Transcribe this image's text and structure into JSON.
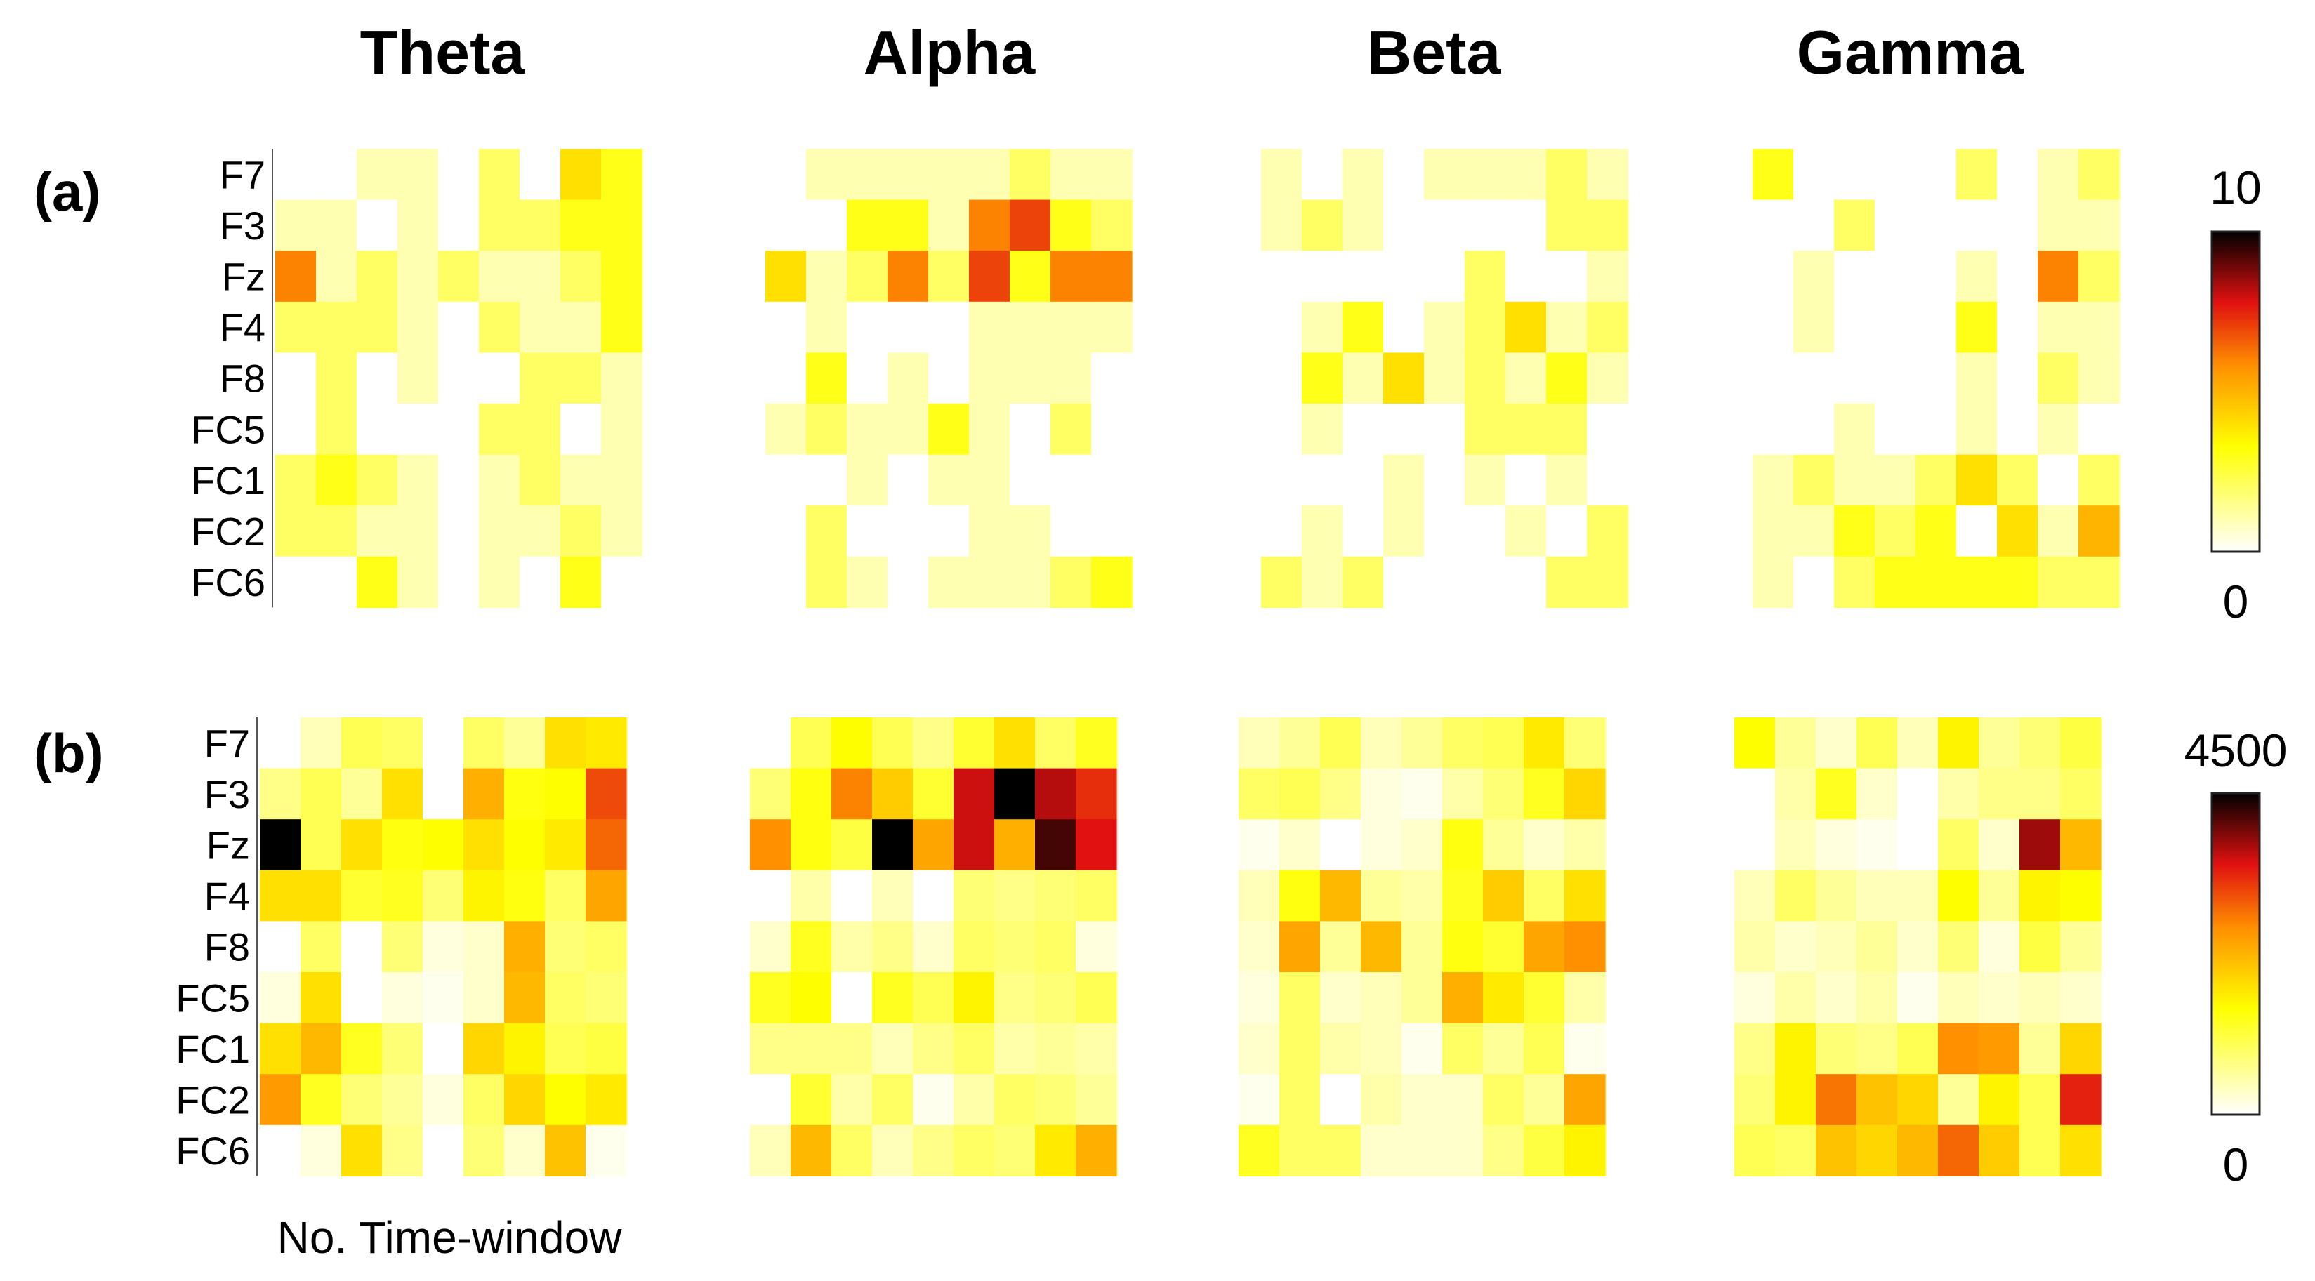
{
  "chart_data": {
    "type": "heatmap",
    "colormap": "hot (reversed: white = 0, yellow, orange, red, black = max)",
    "bands": [
      "Theta",
      "Alpha",
      "Beta",
      "Gamma"
    ],
    "channels": [
      "F7",
      "F3",
      "Fz",
      "F4",
      "F8",
      "FC5",
      "FC1",
      "FC2",
      "FC6"
    ],
    "time_windows": 9,
    "xlabel": "No. Time-window",
    "panels": [
      {
        "label": "(a)",
        "colorbar": {
          "min": 0,
          "max": 10,
          "min_label": "0",
          "max_label": "10"
        },
        "matrices": [
          [
            [
              0,
              0,
              1,
              1,
              0,
              2,
              0,
              4,
              3
            ],
            [
              1,
              1,
              0,
              1,
              0,
              2,
              2,
              3,
              3
            ],
            [
              6,
              1,
              2,
              1,
              2,
              1,
              1,
              2,
              3
            ],
            [
              2,
              2,
              2,
              1,
              0,
              2,
              1,
              1,
              3
            ],
            [
              0,
              2,
              0,
              1,
              0,
              0,
              2,
              2,
              1
            ],
            [
              0,
              2,
              0,
              0,
              0,
              2,
              2,
              0,
              1
            ],
            [
              2,
              3,
              2,
              1,
              0,
              1,
              2,
              1,
              1
            ],
            [
              2,
              2,
              1,
              1,
              0,
              1,
              1,
              2,
              1
            ],
            [
              0,
              0,
              3,
              1,
              0,
              1,
              0,
              3,
              0
            ]
          ],
          [
            [
              0,
              1,
              1,
              1,
              1,
              1,
              2,
              1,
              1
            ],
            [
              0,
              0,
              3,
              3,
              1,
              6,
              7,
              3,
              2
            ],
            [
              4,
              1,
              2,
              6,
              2,
              7,
              3,
              6,
              6
            ],
            [
              0,
              1,
              0,
              0,
              0,
              1,
              1,
              1,
              1
            ],
            [
              0,
              3,
              0,
              1,
              0,
              1,
              1,
              1,
              0
            ],
            [
              1,
              2,
              1,
              1,
              3,
              1,
              0,
              2,
              0
            ],
            [
              0,
              0,
              1,
              0,
              1,
              1,
              0,
              0,
              0
            ],
            [
              0,
              2,
              0,
              0,
              0,
              1,
              1,
              0,
              0
            ],
            [
              0,
              2,
              1,
              0,
              1,
              1,
              1,
              2,
              3
            ]
          ],
          [
            [
              1,
              0,
              1,
              0,
              1,
              1,
              1,
              2,
              1
            ],
            [
              1,
              2,
              1,
              0,
              0,
              0,
              0,
              2,
              2
            ],
            [
              0,
              0,
              0,
              0,
              0,
              2,
              0,
              0,
              1
            ],
            [
              0,
              1,
              3,
              0,
              1,
              2,
              4,
              1,
              2
            ],
            [
              0,
              3,
              1,
              4,
              1,
              2,
              1,
              3,
              1
            ],
            [
              0,
              1,
              0,
              0,
              0,
              2,
              2,
              2,
              0
            ],
            [
              0,
              0,
              0,
              1,
              0,
              1,
              0,
              1,
              0
            ],
            [
              0,
              1,
              0,
              1,
              0,
              0,
              1,
              0,
              2
            ],
            [
              2,
              1,
              2,
              0,
              0,
              0,
              0,
              2,
              2
            ]
          ],
          [
            [
              3,
              0,
              0,
              0,
              0,
              2,
              0,
              1,
              2
            ],
            [
              0,
              0,
              2,
              0,
              0,
              0,
              0,
              1,
              1
            ],
            [
              0,
              1,
              0,
              0,
              0,
              1,
              0,
              6,
              2
            ],
            [
              0,
              1,
              0,
              0,
              0,
              3,
              0,
              1,
              1
            ],
            [
              0,
              0,
              0,
              0,
              0,
              1,
              0,
              2,
              1
            ],
            [
              0,
              0,
              1,
              0,
              0,
              1,
              0,
              1,
              0
            ],
            [
              1,
              2,
              1,
              1,
              2,
              4,
              2,
              0,
              2
            ],
            [
              1,
              1,
              3,
              2,
              3,
              0,
              4,
              1,
              5
            ],
            [
              1,
              0,
              2,
              3,
              3,
              3,
              3,
              2,
              2
            ]
          ]
        ]
      },
      {
        "label": "(b)",
        "colorbar": {
          "min": 0,
          "max": 4500,
          "min_label": "0",
          "max_label": "4500"
        },
        "matrices": [
          [
            [
              0,
              400,
              1000,
              900,
              0,
              900,
              600,
              1800,
              1700
            ],
            [
              700,
              1000,
              600,
              1800,
              0,
              2300,
              1400,
              1500,
              3100
            ],
            [
              4500,
              1000,
              1800,
              1400,
              1500,
              1800,
              1500,
              1700,
              2900
            ],
            [
              1800,
              1800,
              1200,
              1300,
              800,
              1600,
              1400,
              900,
              2400
            ],
            [
              0,
              900,
              0,
              800,
              200,
              300,
              2300,
              800,
              900
            ],
            [
              200,
              1800,
              0,
              200,
              100,
              300,
              2200,
              900,
              800
            ],
            [
              1800,
              2200,
              1300,
              800,
              0,
              1900,
              1600,
              1000,
              1100
            ],
            [
              2500,
              1300,
              800,
              600,
              200,
              900,
              1900,
              1500,
              1700
            ],
            [
              0,
              200,
              1800,
              700,
              0,
              800,
              300,
              2100,
              100
            ]
          ],
          [
            [
              0,
              1000,
              1500,
              1000,
              700,
              1200,
              1800,
              900,
              1300
            ],
            [
              800,
              1400,
              2700,
              2000,
              1200,
              3600,
              4500,
              3700,
              3300
            ],
            [
              2600,
              1400,
              1100,
              4500,
              2400,
              3600,
              2300,
              4200,
              3500
            ],
            [
              0,
              500,
              0,
              400,
              0,
              800,
              700,
              800,
              900
            ],
            [
              300,
              1300,
              500,
              700,
              300,
              900,
              800,
              900,
              200
            ],
            [
              1300,
              1500,
              0,
              1300,
              1000,
              1600,
              700,
              800,
              1000
            ],
            [
              700,
              700,
              700,
              400,
              700,
              900,
              500,
              600,
              500
            ],
            [
              0,
              1200,
              500,
              900,
              100,
              500,
              900,
              800,
              600
            ],
            [
              400,
              2200,
              900,
              400,
              700,
              900,
              800,
              1700,
              2300
            ]
          ],
          [
            [
              400,
              600,
              1000,
              400,
              600,
              900,
              1000,
              1700,
              800
            ],
            [
              900,
              1000,
              700,
              200,
              100,
              500,
              800,
              1300,
              1900
            ],
            [
              100,
              300,
              0,
              200,
              300,
              1400,
              600,
              300,
              500
            ],
            [
              400,
              1400,
              2200,
              600,
              500,
              1300,
              2000,
              900,
              1800
            ],
            [
              300,
              2400,
              600,
              2200,
              600,
              1400,
              1200,
              2400,
              2600
            ],
            [
              200,
              900,
              300,
              400,
              600,
              2300,
              1700,
              1200,
              500
            ],
            [
              300,
              900,
              500,
              400,
              100,
              900,
              600,
              1000,
              100
            ],
            [
              100,
              900,
              0,
              500,
              300,
              300,
              900,
              600,
              2400
            ],
            [
              1300,
              900,
              900,
              300,
              300,
              300,
              700,
              1100,
              1600
            ]
          ],
          [
            [
              1500,
              600,
              300,
              1000,
              400,
              1600,
              600,
              800,
              1100
            ],
            [
              0,
              500,
              1300,
              300,
              0,
              500,
              700,
              700,
              900
            ],
            [
              0,
              400,
              200,
              100,
              0,
              900,
              300,
              3800,
              2200
            ],
            [
              400,
              900,
              600,
              400,
              400,
              1500,
              600,
              1600,
              1500
            ],
            [
              500,
              300,
              400,
              600,
              300,
              800,
              200,
              1100,
              600
            ],
            [
              200,
              500,
              300,
              500,
              100,
              400,
              300,
              400,
              300
            ],
            [
              700,
              1600,
              800,
              700,
              1000,
              2600,
              2500,
              600,
              1900
            ],
            [
              800,
              1600,
              2800,
              2100,
              1900,
              600,
              1600,
              1000,
              3400
            ],
            [
              1000,
              900,
              2100,
              1900,
              2200,
              2900,
              2000,
              1000,
              1800
            ]
          ]
        ]
      }
    ]
  }
}
